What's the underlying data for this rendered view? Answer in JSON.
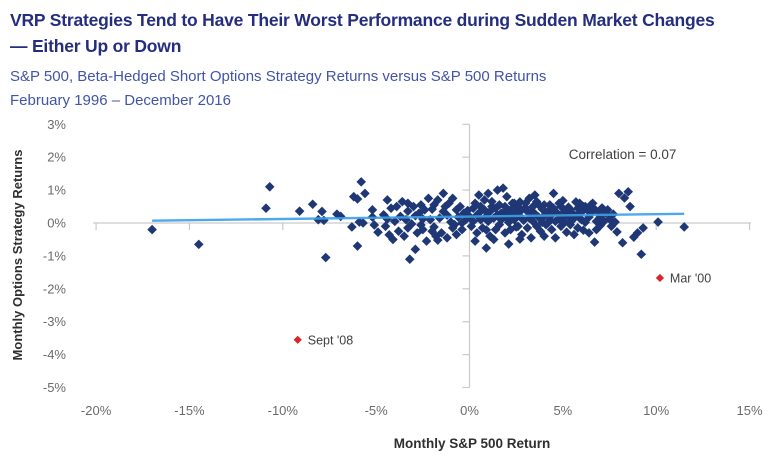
{
  "header": {
    "title": "VRP Strategies Tend to Have Their Worst Performance during Sudden Market Changes — Either Up or Down",
    "subtitle": "S&P 500, Beta-Hedged Short Options Strategy Returns versus S&P 500 Returns",
    "period": "February 1996 – December 2016"
  },
  "colors": {
    "title": "#252e7e",
    "subtitle": "#4254a7",
    "point": "#1f3775",
    "outlier": "#d8262c",
    "trend": "#3ba0e8",
    "axis_line": "#c9c9c9",
    "tick_label": "#6b6b6b",
    "axis_title": "#2f2f2f",
    "annotation_text": "#3f3f3f"
  },
  "chart_data": {
    "type": "scatter",
    "title": "VRP Strategies Tend to Have Their Worst Performance during Sudden Market Changes — Either Up or Down",
    "xlabel": "Monthly S&P 500 Return",
    "ylabel": "Monthly Options Strategy Returns",
    "xlim": [
      -20.3,
      15.3
    ],
    "ylim": [
      -5,
      3
    ],
    "grid": false,
    "legend": "none",
    "x_ticks": [
      -20,
      -15,
      -10,
      -5,
      0,
      5,
      10,
      15
    ],
    "x_tick_labels": [
      "-20%",
      "-15%",
      "-10%",
      "-5%",
      "0%",
      "5%",
      "10%",
      "15%"
    ],
    "y_ticks": [
      3,
      2,
      1,
      0,
      -1,
      -2,
      -3,
      -4,
      -5
    ],
    "y_tick_labels": [
      "3%",
      "2%",
      "1%",
      "0%",
      "-1%",
      "-2%",
      "-3%",
      "-4%",
      "-5%"
    ],
    "annotation": {
      "text": "Correlation = 0.07",
      "x": 8.2,
      "y": 1.95
    },
    "correlation": 0.07,
    "trendline": {
      "x1": -17.0,
      "y1": 0.07,
      "x2": 11.5,
      "y2": 0.28
    },
    "outliers": [
      {
        "label": "Mar '00",
        "x": 10.2,
        "y": -1.67
      },
      {
        "label": "Sept '08",
        "x": -9.2,
        "y": -3.55
      }
    ],
    "series": [
      {
        "name": "Monthly beta-hedged short options strategy returns",
        "marker": "diamond",
        "points": [
          [
            -17,
            -0.2
          ],
          [
            -14.5,
            -0.65
          ],
          [
            -10.9,
            0.45
          ],
          [
            -10.7,
            1.1
          ],
          [
            -9.1,
            0.36
          ],
          [
            -8.4,
            0.57
          ],
          [
            -8.1,
            0.1
          ],
          [
            -7.9,
            0.35
          ],
          [
            -7.8,
            0.08
          ],
          [
            -7.7,
            -1.05
          ],
          [
            -7.1,
            0.27
          ],
          [
            -6.9,
            0.2
          ],
          [
            -6.3,
            -0.12
          ],
          [
            -6.2,
            0.8
          ],
          [
            -6,
            -0.7
          ],
          [
            -6,
            0.73
          ],
          [
            -5.9,
            0.03
          ],
          [
            -5.8,
            1.25
          ],
          [
            -5.7,
            0
          ],
          [
            -5.6,
            0.9
          ],
          [
            -5.2,
            0.4
          ],
          [
            -5.2,
            0.18
          ],
          [
            -5.1,
            -0.06
          ],
          [
            -4.9,
            -0.28
          ],
          [
            -4.4,
            0.7
          ],
          [
            -4.4,
            0.12
          ],
          [
            -4.3,
            -0.36
          ],
          [
            -4.1,
            -0.5
          ],
          [
            -3.3,
            0.6
          ],
          [
            -3.3,
            0.36
          ],
          [
            -3.3,
            -0.15
          ],
          [
            -3.2,
            -1.1
          ],
          [
            -3.1,
            -0.03
          ],
          [
            -2.9,
            -0.8
          ],
          [
            -2.7,
            0.3
          ],
          [
            -2.6,
            0.55
          ],
          [
            -2.6,
            -0.06
          ],
          [
            -2.5,
            0.12
          ],
          [
            -2.5,
            -0.2
          ],
          [
            -2.2,
            0.75
          ],
          [
            -2,
            0.42
          ],
          [
            -1.9,
            -0.12
          ],
          [
            -1.8,
            -0.4
          ],
          [
            -1.7,
            0.7
          ],
          [
            -1.7,
            -0.52
          ],
          [
            -1.4,
            0.9
          ],
          [
            -1.3,
            0.5
          ],
          [
            -1.2,
            0.24
          ],
          [
            -1,
            0.03
          ],
          [
            -0.9,
            -0.15
          ],
          [
            -0.7,
            0.4
          ],
          [
            -0.6,
            0.18
          ],
          [
            -0.4,
            0
          ],
          [
            -0.3,
            0.3
          ],
          [
            0.4,
            0.24
          ],
          [
            0.5,
            0.85
          ],
          [
            0.9,
            -0.21
          ],
          [
            0.9,
            -0.76
          ],
          [
            1,
            0.9
          ],
          [
            1.2,
            0.5
          ],
          [
            1.5,
            1
          ],
          [
            1.7,
            0.3
          ],
          [
            1.8,
            1.06
          ],
          [
            2,
            0.8
          ],
          [
            2.1,
            -0.64
          ],
          [
            2.3,
            0.6
          ],
          [
            2.5,
            -0.12
          ],
          [
            2.7,
            0.64
          ],
          [
            2.7,
            -0.49
          ],
          [
            3,
            0.46
          ],
          [
            3.3,
            0.33
          ],
          [
            3.5,
            0.85
          ],
          [
            3.8,
            0.5
          ],
          [
            4.1,
            0.3
          ],
          [
            4.3,
            0.1
          ],
          [
            4.5,
            0.9
          ],
          [
            4.8,
            0.6
          ],
          [
            5,
            0.18
          ],
          [
            5.4,
            0.4
          ],
          [
            5.7,
            0.64
          ],
          [
            5.9,
            0.15
          ],
          [
            6.2,
            0.5
          ],
          [
            6.5,
            0.3
          ],
          [
            6.6,
            0.6
          ],
          [
            6.7,
            0.42
          ],
          [
            6.7,
            -0.58
          ],
          [
            6.9,
            0.33
          ],
          [
            7.1,
            0.46
          ],
          [
            7.3,
            0.3
          ],
          [
            7.4,
            0.4
          ],
          [
            7.7,
            0.27
          ],
          [
            7.8,
            0.03
          ],
          [
            7.9,
            -0.27
          ],
          [
            8,
            0.9
          ],
          [
            8.2,
            -0.6
          ],
          [
            8.3,
            0.76
          ],
          [
            8.5,
            0.95
          ],
          [
            8.6,
            0.5
          ],
          [
            8.8,
            -0.43
          ],
          [
            9,
            -0.3
          ],
          [
            9.2,
            -0.95
          ],
          [
            9.3,
            -0.15
          ],
          [
            10.1,
            0.03
          ],
          [
            11.5,
            -0.12
          ],
          [
            -4.6,
            0.25
          ],
          [
            -4.5,
            -0.1
          ],
          [
            -4.2,
            0.45
          ],
          [
            -4,
            0.05
          ],
          [
            -3.9,
            0.5
          ],
          [
            -3.8,
            -0.25
          ],
          [
            -3.7,
            0.2
          ],
          [
            -3.6,
            0.65
          ],
          [
            -3.5,
            -0.4
          ],
          [
            -3.4,
            0.1
          ],
          [
            -3,
            0.5
          ],
          [
            -2.9,
            0.22
          ],
          [
            -2.8,
            -0.3
          ],
          [
            -2.4,
            0.4
          ],
          [
            -2.3,
            -0.55
          ],
          [
            -2.1,
            0.1
          ],
          [
            -2,
            -0.25
          ],
          [
            -1.9,
            0.55
          ],
          [
            -1.6,
            0.15
          ],
          [
            -1.5,
            -0.3
          ],
          [
            -1.4,
            0.35
          ],
          [
            -1.2,
            -0.45
          ],
          [
            -1.1,
            0.6
          ],
          [
            -0.9,
            0.75
          ],
          [
            -0.8,
            -0.05
          ],
          [
            -0.7,
            -0.35
          ],
          [
            -0.5,
            0.5
          ],
          [
            -0.4,
            -0.2
          ],
          [
            -0.2,
            0.1
          ],
          [
            -0.1,
            0.38
          ],
          [
            0,
            0.2
          ],
          [
            0.1,
            -0.1
          ],
          [
            0.2,
            0.45
          ],
          [
            0.2,
            0.05
          ],
          [
            0.3,
            0.6
          ],
          [
            0.4,
            -0.3
          ],
          [
            0.5,
            0.3
          ],
          [
            0.6,
            0.1
          ],
          [
            0.6,
            0.5
          ],
          [
            0.7,
            -0.15
          ],
          [
            0.8,
            0.4
          ],
          [
            0.8,
            0.7
          ],
          [
            0.9,
            0.2
          ],
          [
            1,
            0.05
          ],
          [
            1.1,
            0.35
          ],
          [
            1.1,
            -0.4
          ],
          [
            1.2,
            0.65
          ],
          [
            1.3,
            0.15
          ],
          [
            1.4,
            -0.2
          ],
          [
            1.4,
            0.45
          ],
          [
            1.5,
            0.25
          ],
          [
            1.6,
            -0.05
          ],
          [
            1.6,
            0.55
          ],
          [
            1.7,
            0.1
          ],
          [
            1.8,
            0.3
          ],
          [
            1.9,
            -0.3
          ],
          [
            1.9,
            0.5
          ],
          [
            2,
            0.15
          ],
          [
            2,
            0.4
          ],
          [
            2.1,
            0.02
          ],
          [
            2.2,
            0.25
          ],
          [
            2.2,
            -0.2
          ],
          [
            2.3,
            0.45
          ],
          [
            2.4,
            0.1
          ],
          [
            2.4,
            0.6
          ],
          [
            2.5,
            0.3
          ],
          [
            2.6,
            -0.1
          ],
          [
            2.6,
            0.5
          ],
          [
            2.7,
            0.2
          ],
          [
            2.8,
            -0.35
          ],
          [
            2.8,
            0.4
          ],
          [
            2.9,
            0.08
          ],
          [
            3,
            0.6
          ],
          [
            3.1,
            -0.15
          ],
          [
            3.1,
            0.35
          ],
          [
            3.2,
            0.15
          ],
          [
            3.3,
            -0.45
          ],
          [
            3.4,
            0.5
          ],
          [
            3.4,
            0.05
          ],
          [
            3.5,
            0.28
          ],
          [
            3.6,
            -0.1
          ],
          [
            3.6,
            0.65
          ],
          [
            3.7,
            0.18
          ],
          [
            3.8,
            -0.25
          ],
          [
            3.9,
            0.42
          ],
          [
            3.9,
            0.02
          ],
          [
            4,
            0.55
          ],
          [
            4,
            -0.4
          ],
          [
            4,
            0.22
          ],
          [
            4.1,
            -0.05
          ],
          [
            4.2,
            0.35
          ],
          [
            4.2,
            0
          ],
          [
            4.3,
            0.55
          ],
          [
            4.4,
            -0.2
          ],
          [
            4.4,
            0.25
          ],
          [
            4.5,
            0.45
          ],
          [
            4.6,
            0.05
          ],
          [
            4.6,
            -0.45
          ],
          [
            4.7,
            0.3
          ],
          [
            4.8,
            0.12
          ],
          [
            4.9,
            -0.1
          ],
          [
            4.9,
            0.5
          ],
          [
            5,
            0.68
          ],
          [
            5.1,
            0.02
          ],
          [
            5.1,
            0.35
          ],
          [
            5.2,
            -0.28
          ],
          [
            5.3,
            0.2
          ],
          [
            5.3,
            0.48
          ],
          [
            5.4,
            -0.05
          ],
          [
            5.5,
            0.3
          ],
          [
            5.5,
            0.08
          ],
          [
            5.6,
            -0.35
          ],
          [
            5.7,
            0.22
          ],
          [
            5.8,
            0.45
          ],
          [
            5.8,
            -0.15
          ],
          [
            5.9,
            0.6
          ],
          [
            6,
            0.1
          ],
          [
            6,
            0.33
          ],
          [
            6.1,
            -0.22
          ],
          [
            6.1,
            0.5
          ],
          [
            6.2,
            0.02
          ],
          [
            6.3,
            0.4
          ],
          [
            6.4,
            -0.3
          ],
          [
            6.4,
            0.18
          ],
          [
            6.5,
            0.55
          ],
          [
            6.8,
            0.05
          ],
          [
            6.8,
            -0.2
          ],
          [
            7,
            0.18
          ],
          [
            7,
            -0.08
          ],
          [
            7.2,
            0.05
          ],
          [
            7.5,
            0.12
          ],
          [
            7.6,
            -0.1
          ],
          [
            0.3,
            -0.55
          ],
          [
            1.3,
            -0.5
          ],
          [
            3.2,
            0.75
          ]
        ]
      }
    ]
  }
}
